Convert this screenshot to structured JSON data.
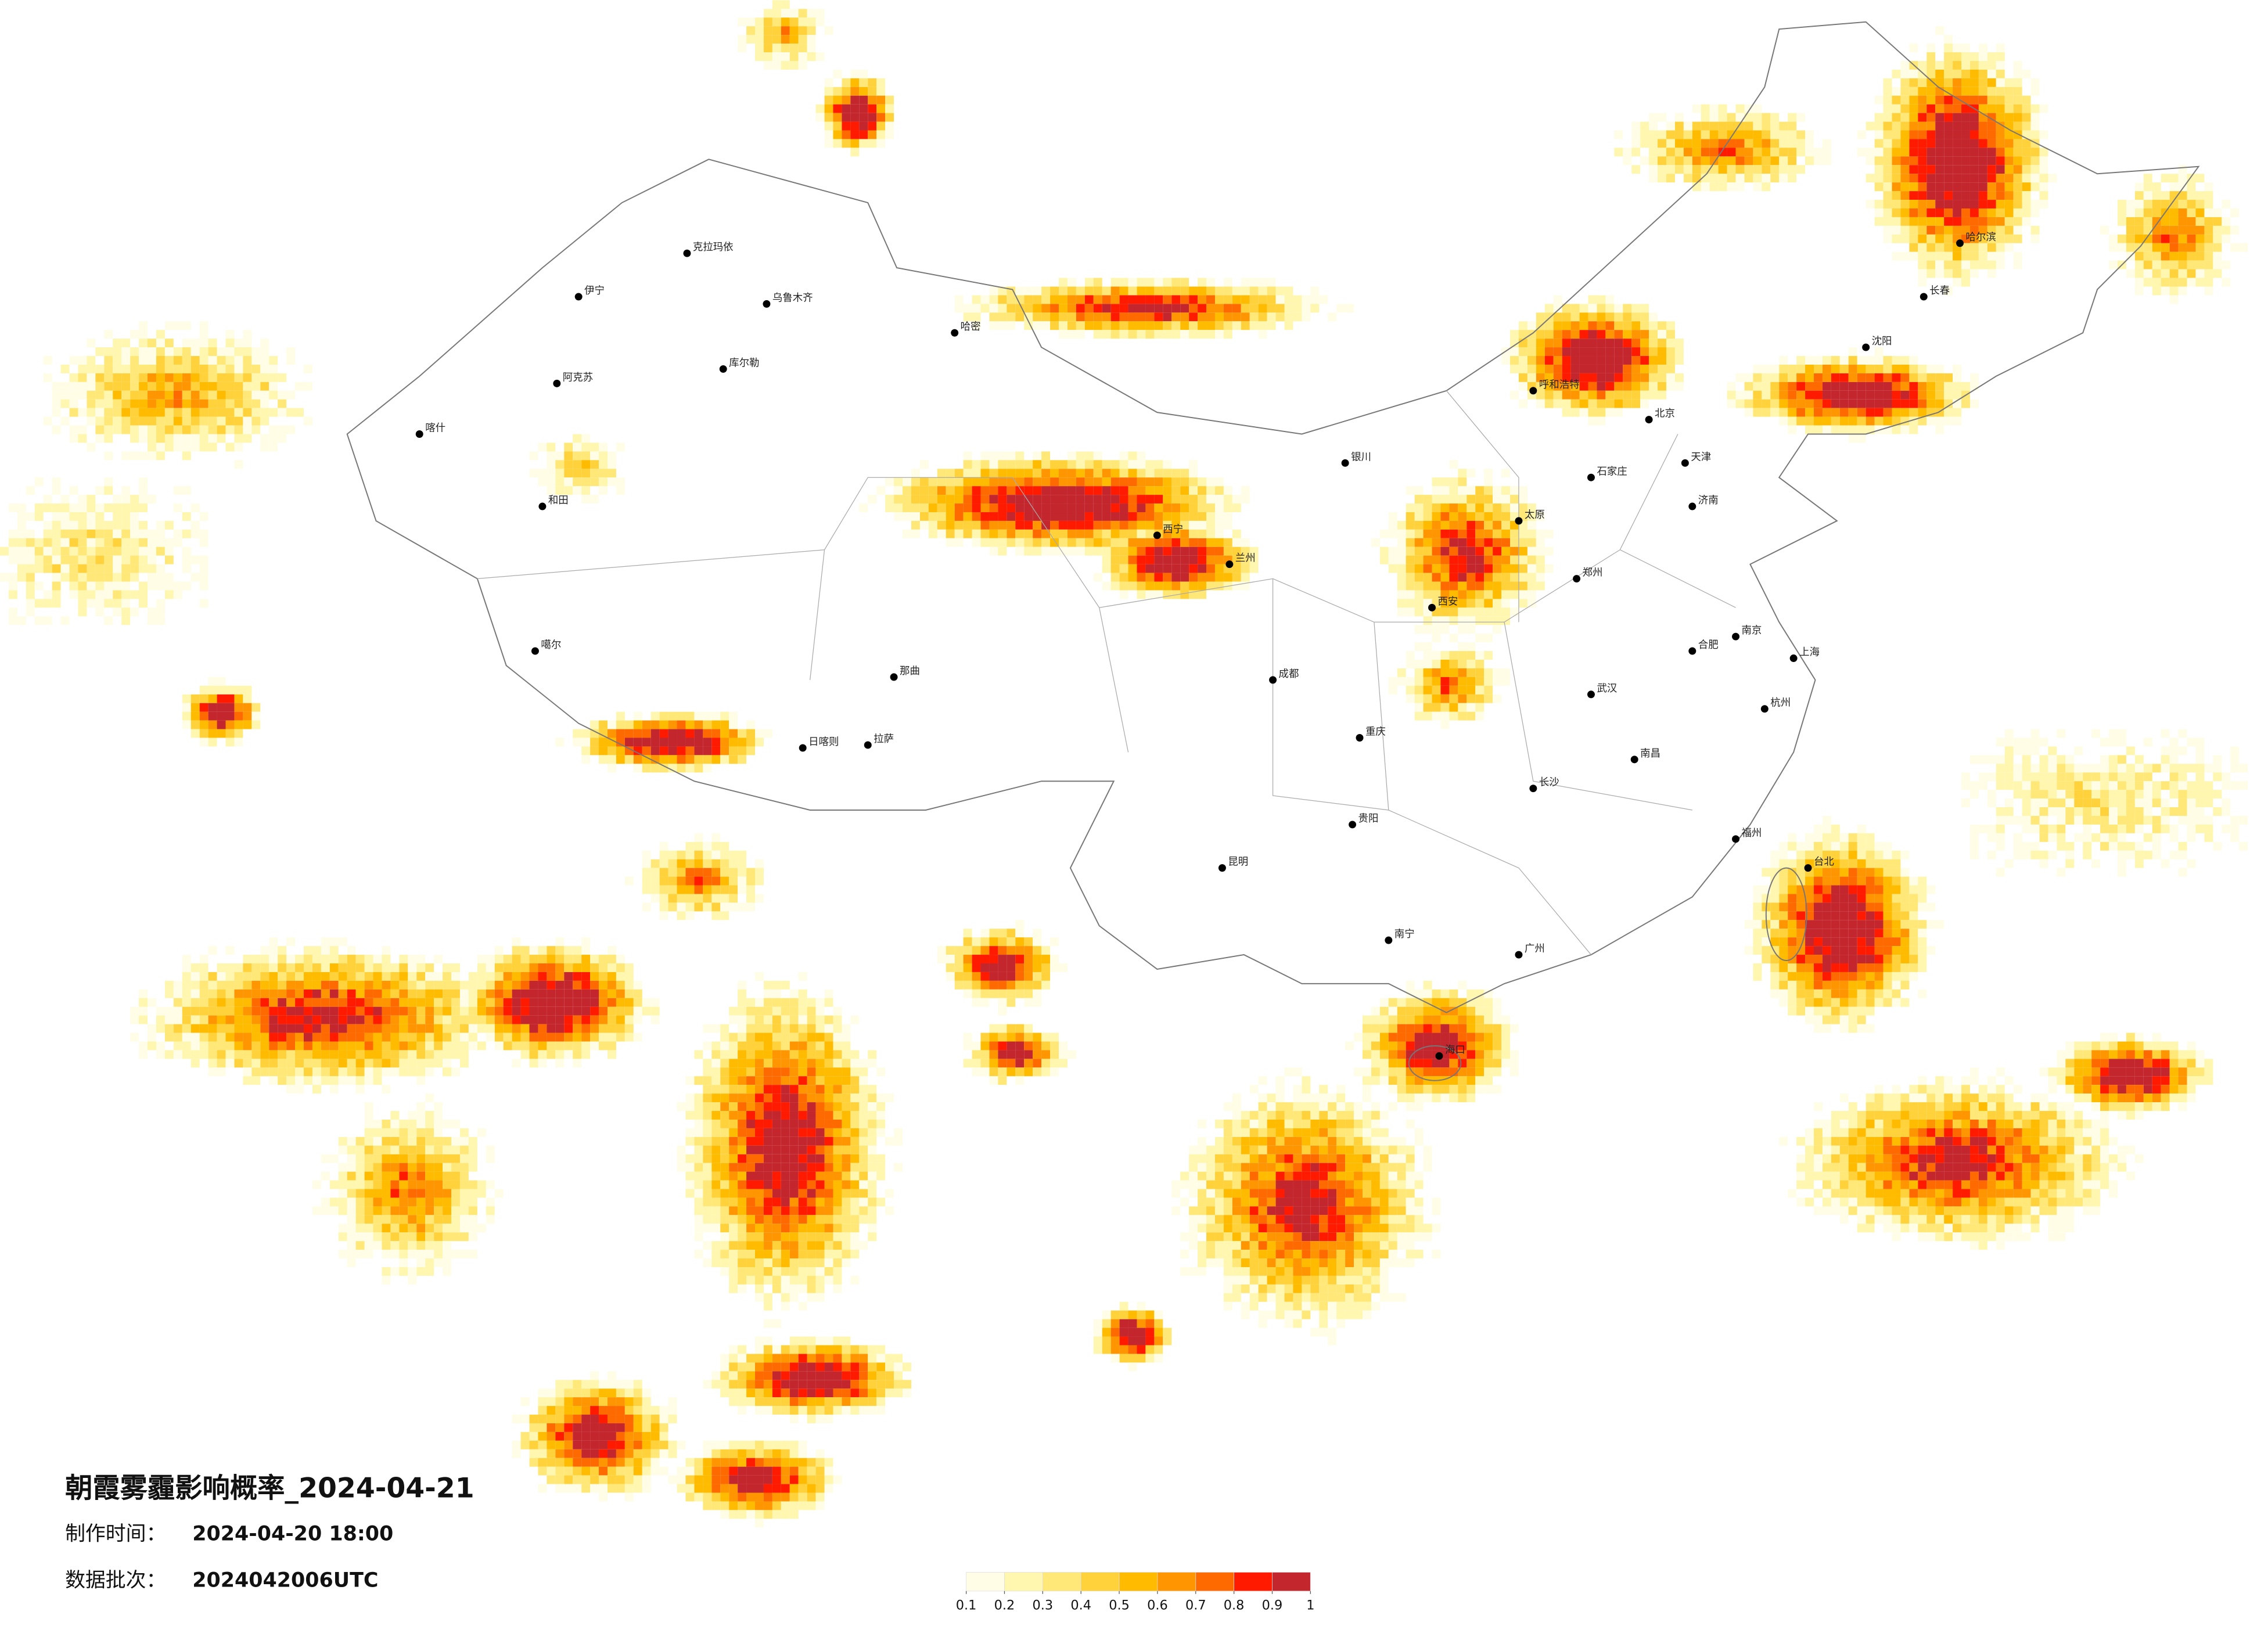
{
  "title": "朝霞雾霾影响概率_2024-04-21",
  "production_time": {
    "label": "制作时间：",
    "value": "2024-04-20 18:00"
  },
  "data_batch": {
    "label": "数据批次：",
    "value": "2024042006UTC"
  },
  "legend": {
    "ticks": [
      0.1,
      0.2,
      0.3,
      0.4,
      0.5,
      0.6,
      0.7,
      0.8,
      0.9,
      1
    ],
    "colors": [
      "#fffde6",
      "#fff6b0",
      "#ffe878",
      "#ffd23c",
      "#ffbb00",
      "#ff9500",
      "#ff6a00",
      "#ff1a00",
      "#c4262e"
    ]
  },
  "cities": [
    "哈尔滨",
    "长春",
    "沈阳",
    "北京",
    "天津",
    "石家庄",
    "太原",
    "呼和浩特",
    "银川",
    "兰州",
    "西宁",
    "乌鲁木齐",
    "拉萨",
    "成都",
    "重庆",
    "贵阳",
    "昆明",
    "南宁",
    "广州",
    "长沙",
    "武汉",
    "郑州",
    "济南",
    "南京",
    "上海",
    "杭州",
    "福州",
    "南昌",
    "合肥",
    "西安",
    "海口",
    "台北",
    "喀什",
    "和田",
    "伊宁",
    "阿克苏",
    "克拉玛依",
    "库尔勒",
    "哈密",
    "日喀则",
    "噶尔",
    "那曲"
  ]
}
